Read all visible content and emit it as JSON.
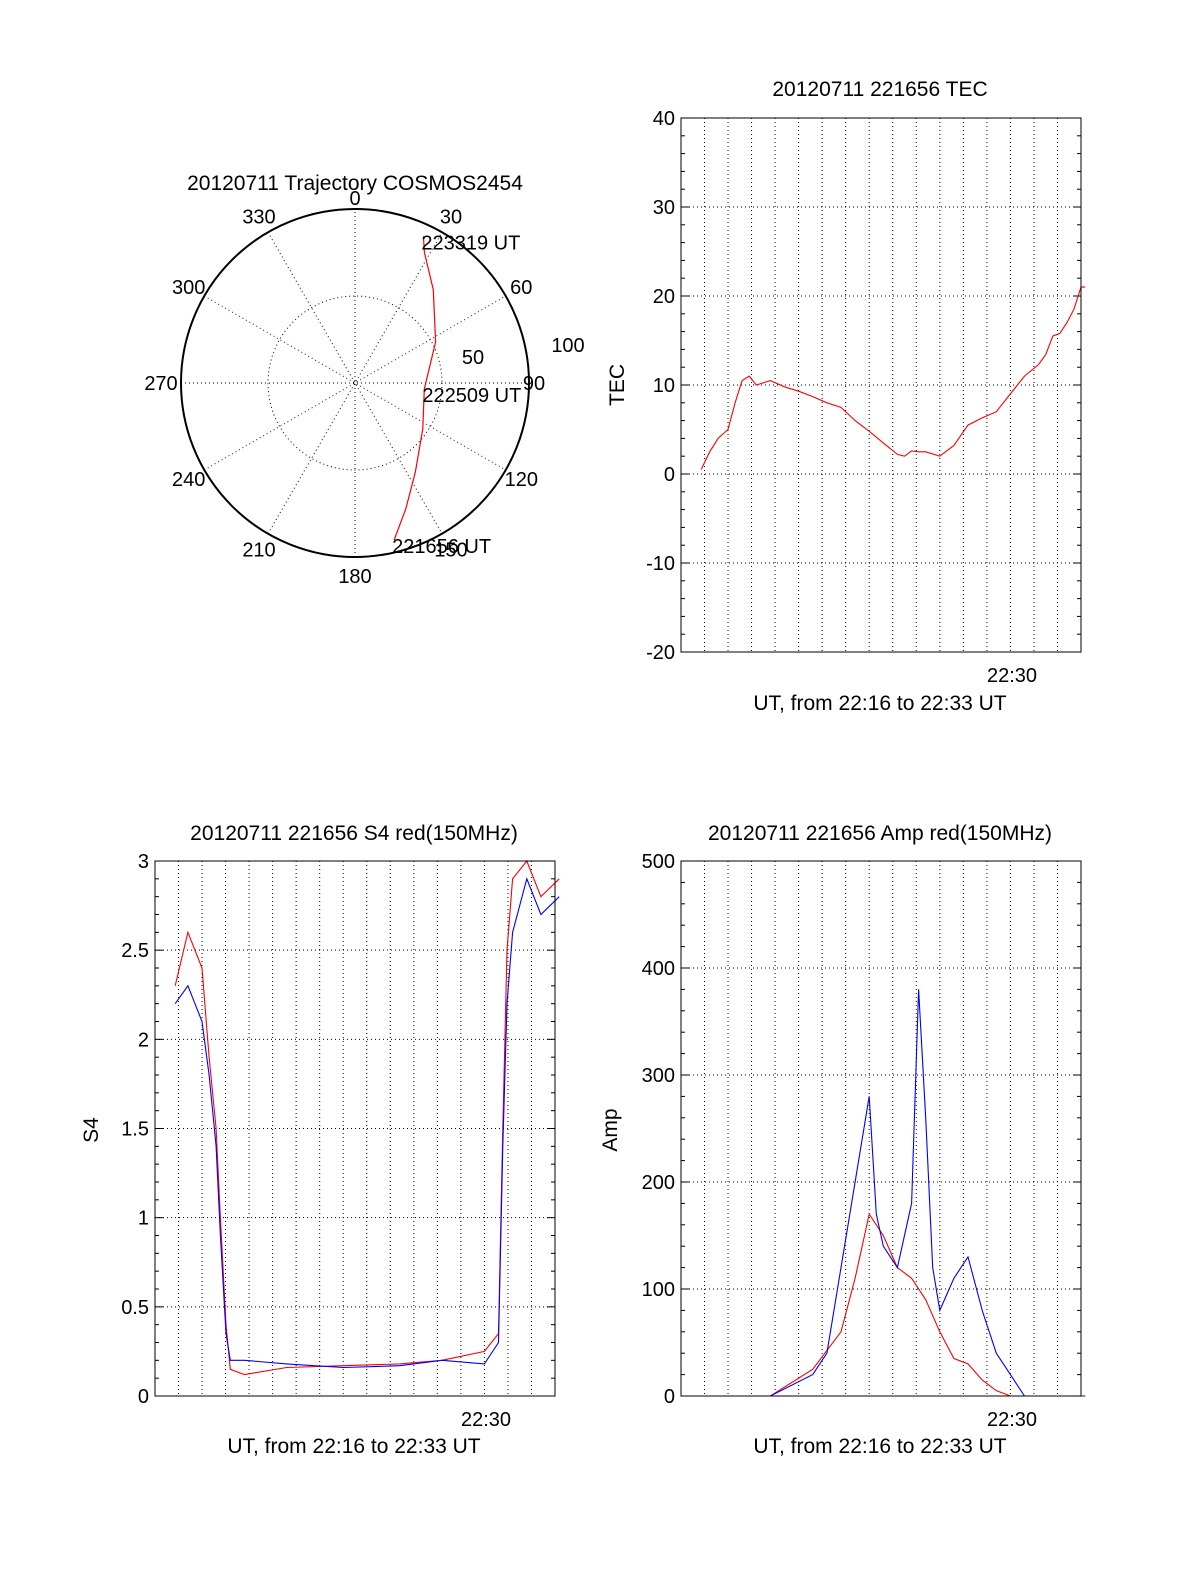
{
  "chart_data": [
    {
      "type": "polar",
      "title": "20120711 Trajectory COSMOS2454",
      "angle_labels": [
        "0",
        "30",
        "60",
        "90",
        "120",
        "150",
        "180",
        "210",
        "240",
        "270",
        "300",
        "330"
      ],
      "radius_labels": [
        "50",
        "100"
      ],
      "radius_values": [
        50,
        100
      ],
      "trajectory": [
        {
          "az": 166,
          "r": 93,
          "label": "221656 UT"
        },
        {
          "az": 158,
          "r": 78
        },
        {
          "az": 146,
          "r": 62
        },
        {
          "az": 124,
          "r": 47
        },
        {
          "az": 95,
          "r": 40,
          "label": "222509 UT"
        },
        {
          "az": 63,
          "r": 52
        },
        {
          "az": 40,
          "r": 70
        },
        {
          "az": 28,
          "r": 85
        },
        {
          "az": 25,
          "r": 93,
          "label": "223319 UT"
        }
      ],
      "colors": {
        "trajectory": "#ff0000"
      }
    },
    {
      "type": "line",
      "title": "20120711 221656 TEC",
      "xlabel": "UT, from 22:16 to 22:33 UT",
      "ylabel": "TEC",
      "x_tick_label": "22:30",
      "yticks": [
        "-20",
        "-10",
        "0",
        "10",
        "20",
        "30",
        "40"
      ],
      "ylim": [
        -20,
        40
      ],
      "series": [
        {
          "color": "#ff0000",
          "x": [
            22.281,
            22.287,
            22.293,
            22.3,
            22.305,
            22.31,
            22.315,
            22.32,
            22.33,
            22.34,
            22.35,
            22.36,
            22.37,
            22.38,
            22.39,
            22.4,
            22.41,
            22.42,
            22.425,
            22.43,
            22.435,
            22.44,
            22.45,
            22.46,
            22.47,
            22.48,
            22.49,
            22.5,
            22.51,
            22.52,
            22.525,
            22.53,
            22.535,
            22.54,
            22.545,
            22.55,
            22.553
          ],
          "y": [
            0.5,
            2.5,
            4,
            5,
            8,
            10.5,
            11,
            10,
            10.5,
            9.8,
            9.3,
            8.7,
            8,
            7.5,
            6,
            4.8,
            3.5,
            2.2,
            2,
            2.6,
            2.5,
            2.5,
            2,
            3.2,
            5.5,
            6.3,
            7,
            9,
            11,
            12.3,
            13.4,
            15.5,
            15.8,
            17,
            18.5,
            21,
            21
          ]
        }
      ]
    },
    {
      "type": "line",
      "title": "20120711 221656 S4 red(150MHz)",
      "xlabel": "UT, from 22:16 to 22:33 UT",
      "ylabel": "S4",
      "x_tick_label": "22:30",
      "yticks": [
        "0",
        "0.5",
        "1",
        "1.5",
        "2",
        "2.5",
        "3"
      ],
      "ylim": [
        0,
        3
      ],
      "series": [
        {
          "color": "#ff0000",
          "x": [
            22.281,
            22.29,
            22.3,
            22.305,
            22.31,
            22.313,
            22.317,
            22.32,
            22.33,
            22.36,
            22.4,
            22.44,
            22.47,
            22.5,
            22.51,
            22.513,
            22.516,
            22.52,
            22.53,
            22.54,
            22.553
          ],
          "y": [
            2.3,
            2.6,
            2.4,
            1.9,
            1.5,
            1.0,
            0.4,
            0.15,
            0.12,
            0.16,
            0.17,
            0.18,
            0.2,
            0.25,
            0.35,
            1.5,
            2.5,
            2.9,
            3.0,
            2.8,
            2.9
          ]
        },
        {
          "color": "#0000ff",
          "x": [
            22.281,
            22.29,
            22.3,
            22.305,
            22.31,
            22.313,
            22.317,
            22.32,
            22.33,
            22.36,
            22.4,
            22.44,
            22.47,
            22.5,
            22.51,
            22.513,
            22.516,
            22.52,
            22.53,
            22.54,
            22.553
          ],
          "y": [
            2.2,
            2.3,
            2.1,
            1.8,
            1.4,
            0.9,
            0.35,
            0.2,
            0.2,
            0.18,
            0.16,
            0.17,
            0.2,
            0.18,
            0.3,
            1.4,
            2.2,
            2.6,
            2.9,
            2.7,
            2.8
          ]
        }
      ]
    },
    {
      "type": "line",
      "title": "20120711 221656 Amp red(150MHz)",
      "xlabel": "UT, from 22:16 to 22:33 UT",
      "ylabel": "Amp",
      "x_tick_label": "22:30",
      "yticks": [
        "0",
        "100",
        "200",
        "300",
        "400",
        "500"
      ],
      "ylim": [
        0,
        500
      ],
      "series": [
        {
          "color": "#ff0000",
          "x": [
            22.281,
            22.33,
            22.36,
            22.38,
            22.39,
            22.4,
            22.41,
            22.42,
            22.43,
            22.44,
            22.45,
            22.46,
            22.47,
            22.48,
            22.49,
            22.5,
            22.51,
            22.553
          ],
          "y": [
            0,
            0,
            25,
            60,
            110,
            170,
            150,
            120,
            110,
            90,
            60,
            35,
            30,
            15,
            5,
            0,
            0,
            0
          ]
        },
        {
          "color": "#0000ff",
          "x": [
            22.281,
            22.33,
            22.36,
            22.37,
            22.38,
            22.39,
            22.4,
            22.405,
            22.41,
            22.42,
            22.43,
            22.435,
            22.44,
            22.445,
            22.45,
            22.46,
            22.47,
            22.48,
            22.49,
            22.5,
            22.51,
            22.553
          ],
          "y": [
            0,
            0,
            20,
            40,
            120,
            200,
            280,
            170,
            140,
            120,
            180,
            380,
            260,
            120,
            80,
            110,
            130,
            80,
            40,
            20,
            0,
            0
          ]
        }
      ]
    }
  ]
}
